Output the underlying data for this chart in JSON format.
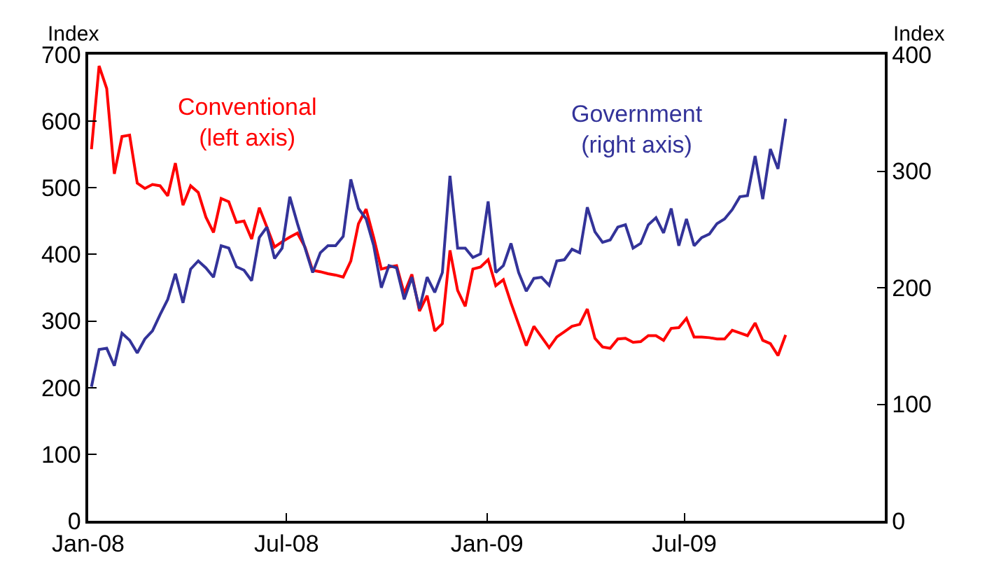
{
  "chart_data": {
    "type": "line",
    "x": [
      "2008-01-04",
      "2008-01-11",
      "2008-01-18",
      "2008-01-25",
      "2008-02-01",
      "2008-02-08",
      "2008-02-15",
      "2008-02-22",
      "2008-02-29",
      "2008-03-07",
      "2008-03-14",
      "2008-03-21",
      "2008-03-28",
      "2008-04-04",
      "2008-04-11",
      "2008-04-18",
      "2008-04-25",
      "2008-05-02",
      "2008-05-09",
      "2008-05-16",
      "2008-05-23",
      "2008-05-30",
      "2008-06-06",
      "2008-06-13",
      "2008-06-20",
      "2008-06-27",
      "2008-07-04",
      "2008-07-11",
      "2008-07-18",
      "2008-07-25",
      "2008-08-01",
      "2008-08-08",
      "2008-08-15",
      "2008-08-22",
      "2008-08-29",
      "2008-09-05",
      "2008-09-12",
      "2008-09-19",
      "2008-09-26",
      "2008-10-03",
      "2008-10-10",
      "2008-10-17",
      "2008-10-24",
      "2008-10-31",
      "2008-11-07",
      "2008-11-14",
      "2008-11-21",
      "2008-11-28",
      "2008-12-05",
      "2008-12-12",
      "2008-12-19",
      "2008-12-26",
      "2009-01-02",
      "2009-01-09",
      "2009-01-16",
      "2009-01-23",
      "2009-01-30",
      "2009-02-06",
      "2009-02-13",
      "2009-02-20",
      "2009-02-27",
      "2009-03-06",
      "2009-03-13",
      "2009-03-20",
      "2009-03-27",
      "2009-04-03",
      "2009-04-10",
      "2009-04-17",
      "2009-04-24",
      "2009-05-01",
      "2009-05-08",
      "2009-05-15",
      "2009-05-22",
      "2009-05-29",
      "2009-06-05",
      "2009-06-12",
      "2009-06-19",
      "2009-06-26",
      "2009-07-03",
      "2009-07-10",
      "2009-07-17",
      "2009-07-24",
      "2009-07-31",
      "2009-08-07",
      "2009-08-14",
      "2009-08-21",
      "2009-08-28",
      "2009-09-04",
      "2009-09-11",
      "2009-09-18",
      "2009-09-25",
      "2009-10-02"
    ],
    "series": [
      {
        "name": "Conventional\n(left axis)",
        "color": "#ff0000",
        "axis": "y",
        "values": [
          558,
          683,
          649,
          521,
          577,
          579,
          507,
          499,
          505,
          503,
          488,
          537,
          474,
          503,
          493,
          456,
          433,
          484,
          479,
          448,
          450,
          423,
          470,
          441,
          411,
          419,
          426,
          432,
          411,
          376,
          374,
          371,
          369,
          366,
          390,
          446,
          468,
          425,
          378,
          381,
          383,
          341,
          370,
          315,
          338,
          285,
          296,
          406,
          346,
          322,
          378,
          381,
          392,
          353,
          362,
          327,
          295,
          263,
          292,
          276,
          260,
          276,
          284,
          292,
          295,
          318,
          274,
          261,
          259,
          273,
          274,
          268,
          269,
          278,
          278,
          271,
          289,
          290,
          304,
          276,
          276,
          275,
          273,
          273,
          286,
          282,
          278,
          297,
          271,
          266,
          248,
          279
        ]
      },
      {
        "name": "Government\n(right axis)",
        "color": "#333399",
        "axis": "y2",
        "values": [
          115,
          147,
          148,
          133,
          161,
          155,
          144,
          156,
          163,
          177,
          190,
          212,
          187,
          216,
          223,
          217,
          209,
          236,
          234,
          218,
          215,
          206,
          243,
          252,
          225,
          234,
          278,
          255,
          234,
          213,
          230,
          236,
          236,
          244,
          293,
          268,
          259,
          236,
          200,
          219,
          217,
          190,
          209,
          182,
          209,
          196,
          213,
          296,
          234,
          234,
          226,
          229,
          274,
          213,
          219,
          238,
          213,
          197,
          208,
          209,
          202,
          223,
          224,
          233,
          230,
          269,
          248,
          239,
          241,
          252,
          254,
          234,
          238,
          254,
          260,
          247,
          268,
          236,
          259,
          236,
          243,
          246,
          255,
          259,
          267,
          278,
          279,
          313,
          276,
          319,
          302,
          345
        ]
      }
    ],
    "ylabel": "Index",
    "y2label": "Index",
    "xlim": [
      "2008-01-01",
      "2010-01-01"
    ],
    "xticks": [
      {
        "value": "2008-01-01",
        "label": "Jan-08"
      },
      {
        "value": "2008-07-01",
        "label": "Jul-08"
      },
      {
        "value": "2009-01-01",
        "label": "Jan-09"
      },
      {
        "value": "2009-07-01",
        "label": "Jul-09"
      }
    ],
    "ylim": [
      0,
      700
    ],
    "yticks": [
      0,
      100,
      200,
      300,
      400,
      500,
      600,
      700
    ],
    "y2lim": [
      0,
      400
    ],
    "y2ticks": [
      0,
      100,
      200,
      300,
      400
    ],
    "legend": false,
    "marker": "none",
    "line_style": "solid"
  }
}
